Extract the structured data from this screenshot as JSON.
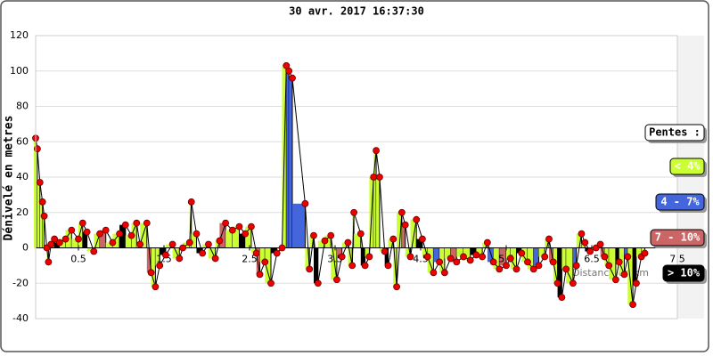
{
  "chart_data": {
    "type": "profile",
    "title": "30 avr. 2017 16:37:30",
    "y_label": "Dénivelé en metres",
    "x_label": "Distance en km",
    "legend_title": "Pentes :",
    "legend": [
      {
        "name": "< 4%",
        "color": "#ccff33"
      },
      {
        "name": "4 - 7%",
        "color": "#4466dd"
      },
      {
        "name": "7 - 10%",
        "color": "#cc6666"
      },
      {
        "name": "> 10%",
        "color": "#000000"
      }
    ],
    "xlim": [
      0,
      7.5
    ],
    "xticks": [
      0.5,
      1.5,
      2.5,
      3.5,
      4.5,
      5.5,
      6.5,
      7.5
    ],
    "ylim": [
      -40,
      120
    ],
    "yticks": [
      -40,
      -20,
      0,
      20,
      40,
      60,
      80,
      100,
      120
    ],
    "grid": true,
    "x": [
      0,
      0.02,
      0.05,
      0.08,
      0.1,
      0.13,
      0.15,
      0.18,
      0.22,
      0.28,
      0.35,
      0.42,
      0.5,
      0.55,
      0.6,
      0.68,
      0.75,
      0.82,
      0.9,
      0.98,
      1.05,
      1.12,
      1.18,
      1.22,
      1.3,
      1.35,
      1.4,
      1.45,
      1.52,
      1.6,
      1.68,
      1.72,
      1.8,
      1.82,
      1.88,
      1.95,
      2.02,
      2.1,
      2.15,
      2.22,
      2.3,
      2.38,
      2.45,
      2.52,
      2.58,
      2.62,
      2.68,
      2.75,
      2.82,
      2.88,
      2.93,
      2.96,
      3.0,
      3.15,
      3.2,
      3.25,
      3.3,
      3.38,
      3.45,
      3.52,
      3.58,
      3.65,
      3.7,
      3.72,
      3.8,
      3.85,
      3.9,
      3.95,
      3.98,
      4.02,
      4.08,
      4.12,
      4.18,
      4.22,
      4.28,
      4.32,
      4.38,
      4.45,
      4.52,
      4.58,
      4.65,
      4.72,
      4.78,
      4.85,
      4.92,
      5.0,
      5.08,
      5.15,
      5.22,
      5.28,
      5.35,
      5.42,
      5.5,
      5.55,
      5.62,
      5.68,
      5.75,
      5.82,
      5.88,
      5.95,
      6.0,
      6.05,
      6.1,
      6.15,
      6.2,
      6.28,
      6.32,
      6.38,
      6.42,
      6.48,
      6.55,
      6.6,
      6.65,
      6.7,
      6.78,
      6.82,
      6.88,
      6.92,
      6.98,
      7.02,
      7.08,
      7.12
    ],
    "values": [
      62,
      56,
      37,
      26,
      18,
      0,
      -8,
      2,
      5,
      3,
      5,
      10,
      5,
      14,
      9,
      -2,
      8,
      10,
      3,
      8,
      13,
      7,
      14,
      2,
      14,
      -14,
      -22,
      -10,
      -4,
      2,
      -6,
      0,
      3,
      26,
      8,
      -3,
      2,
      -6,
      4,
      14,
      10,
      12,
      8,
      12,
      -3,
      -15,
      -8,
      -20,
      -3,
      0,
      103,
      100,
      96,
      25,
      -12,
      7,
      -20,
      4,
      7,
      -18,
      -5,
      3,
      -10,
      20,
      8,
      -10,
      -5,
      40,
      55,
      40,
      -2,
      -10,
      5,
      -22,
      20,
      13,
      -5,
      16,
      5,
      -5,
      -14,
      -8,
      -14,
      -6,
      -8,
      -5,
      -7,
      -4,
      -5,
      3,
      -8,
      -12,
      -10,
      -6,
      -12,
      -3,
      -8,
      -12,
      -10,
      -5,
      5,
      -8,
      -20,
      -28,
      -12,
      -20,
      -10,
      8,
      3,
      -2,
      0,
      2,
      -5,
      -10,
      -18,
      -8,
      -15,
      -5,
      -32,
      -20,
      -5,
      -3
    ],
    "colors": [
      "#cf3",
      "#cf3",
      "#cf3",
      "#cf3",
      "#cf3",
      "#cf3",
      "#cf3",
      "#cf3",
      "#cf3",
      "#000",
      "#cf3",
      "#cf3",
      "#cf3",
      "#cf3",
      "#000",
      "#cf3",
      "#cf3",
      "#c66",
      "#cf3",
      "#cf3",
      "#000",
      "#cf3",
      "#cf3",
      "#cf3",
      "#cf3",
      "#c66",
      "#cf3",
      "#cf3",
      "#000",
      "#cf3",
      "#cf3",
      "#cf3",
      "#cf3",
      "#cf3",
      "#cf3",
      "#000",
      "#cf3",
      "#cf3",
      "#cf3",
      "#c66",
      "#cf3",
      "#cf3",
      "#000",
      "#cf3",
      "#cf3",
      "#c66",
      "#cf3",
      "#cf3",
      "#000",
      "#cf3",
      "#cf3",
      "#46d",
      "#46d",
      "#46d",
      "#cf3",
      "#cf3",
      "#000",
      "#cf3",
      "#cf3",
      "#cf3",
      "#c66",
      "#cf3",
      "#cf3",
      "#cf3",
      "#cf3",
      "#000",
      "#cf3",
      "#cf3",
      "#cf3",
      "#cf3",
      "#cf3",
      "#000",
      "#cf3",
      "#cf3",
      "#cf3",
      "#c66",
      "#cf3",
      "#cf3",
      "#000",
      "#cf3",
      "#cf3",
      "#46d",
      "#cf3",
      "#cf3",
      "#c66",
      "#cf3",
      "#cf3",
      "#000",
      "#cf3",
      "#cf3",
      "#46d",
      "#cf3",
      "#c66",
      "#cf3",
      "#cf3",
      "#000",
      "#cf3",
      "#cf3",
      "#46d",
      "#cf3",
      "#cf3",
      "#c66",
      "#cf3",
      "#000",
      "#cf3",
      "#cf3",
      "#46d",
      "#cf3",
      "#cf3",
      "#000",
      "#cf3",
      "#cf3",
      "#c66",
      "#cf3",
      "#cf3",
      "#000",
      "#cf3",
      "#46d",
      "#cf3",
      "#000",
      "#cf3",
      "#cf3"
    ]
  }
}
